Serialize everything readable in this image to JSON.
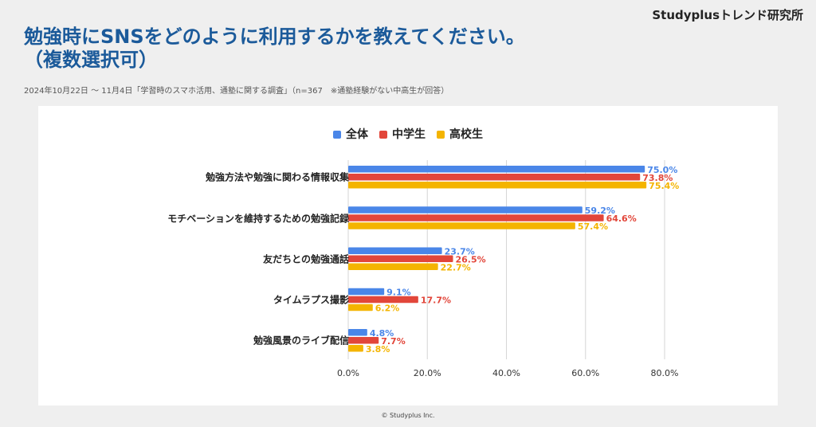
{
  "brand": "Studyplusトレンド研究所",
  "title_line1": "勉強時にSNSをどのように利用するかを教えてください。",
  "title_line2": "（複数選択可）",
  "subtitle": "2024年10月22日 〜 11月4日「学習時のスマホ活用、通塾に関する調査」（n=367　※通塾経験がない中高生が回答）",
  "copyright": "© Studyplus Inc.",
  "chart_data": {
    "type": "bar",
    "orientation": "horizontal",
    "categories": [
      "勉強方法や勉強に関わる情報収集",
      "モチベーションを維持するための勉強記録",
      "友だちとの勉強通話",
      "タイムラプス撮影",
      "勉強風景のライブ配信"
    ],
    "series": [
      {
        "name": "全体",
        "color": "#4a86e8",
        "values": [
          75.0,
          59.2,
          23.7,
          9.1,
          4.8
        ]
      },
      {
        "name": "中学生",
        "color": "#e2463a",
        "values": [
          73.8,
          64.6,
          26.5,
          17.7,
          7.7
        ]
      },
      {
        "name": "高校生",
        "color": "#f4b400",
        "values": [
          75.4,
          57.4,
          22.7,
          6.2,
          3.8
        ]
      }
    ],
    "xlim": [
      0,
      80
    ],
    "xticks": [
      "0.0%",
      "20.0%",
      "40.0%",
      "60.0%",
      "80.0%"
    ],
    "xtick_values": [
      0,
      20,
      40,
      60,
      80
    ],
    "value_suffix": "%",
    "grid": true,
    "legend_position": "top-center"
  }
}
